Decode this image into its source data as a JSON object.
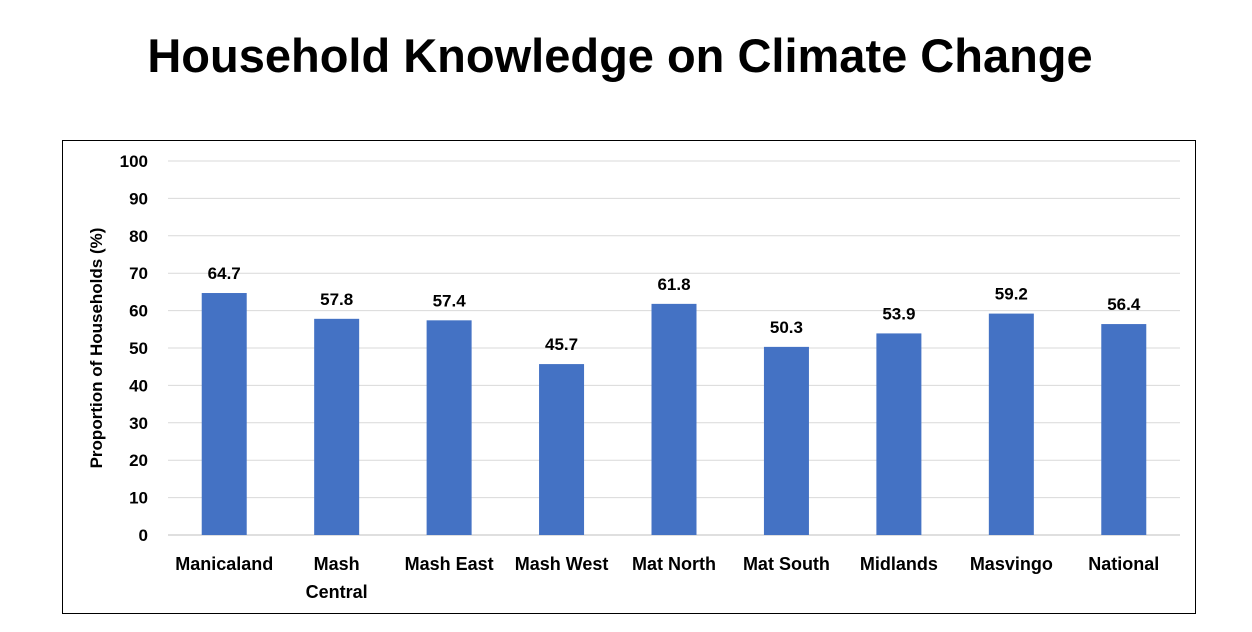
{
  "page": {
    "title": "Household Knowledge on Climate Change"
  },
  "chart_data": {
    "type": "bar",
    "title": "Household Knowledge on Climate Change",
    "xlabel": "",
    "ylabel": "Proportion of Households (%)",
    "ylim": [
      0,
      100
    ],
    "yticks": [
      0,
      10,
      20,
      30,
      40,
      50,
      60,
      70,
      80,
      90,
      100
    ],
    "categories": [
      [
        "Manicaland"
      ],
      [
        "Mash",
        "Central"
      ],
      [
        "Mash East"
      ],
      [
        "Mash West"
      ],
      [
        "Mat North"
      ],
      [
        "Mat South"
      ],
      [
        "Midlands"
      ],
      [
        "Masvingo"
      ],
      [
        "National"
      ]
    ],
    "values": [
      64.7,
      57.8,
      57.4,
      45.7,
      61.8,
      50.3,
      53.9,
      59.2,
      56.4
    ],
    "data_labels": [
      "64.7",
      "57.8",
      "57.4",
      "45.7",
      "61.8",
      "50.3",
      "53.9",
      "59.2",
      "56.4"
    ],
    "bar_color": "#4472C4",
    "grid": true,
    "grid_color": "#d9d9d9",
    "legend": "none"
  }
}
